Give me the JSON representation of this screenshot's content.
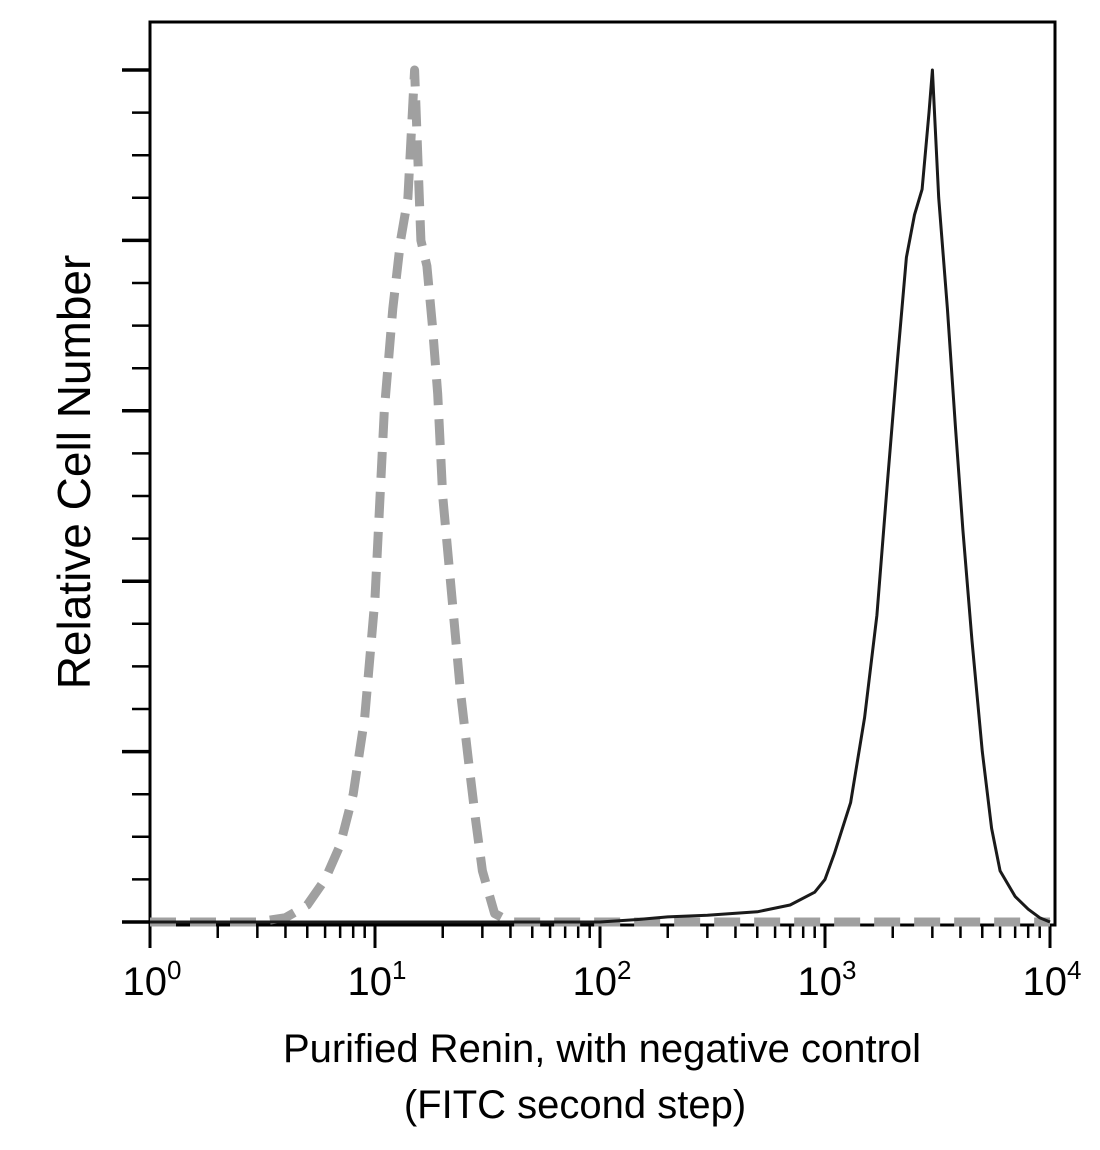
{
  "chart_data": {
    "type": "line",
    "title": "",
    "xlabel": "Purified Renin, with negative control",
    "xlabel_line2": "(FITC second step)",
    "ylabel": "Relative Cell Number",
    "x_scale": "log",
    "xlim": [
      1,
      10000
    ],
    "ylim": [
      0,
      100
    ],
    "x_tick_labels": [
      {
        "base": "10",
        "exp": "0"
      },
      {
        "base": "10",
        "exp": "1"
      },
      {
        "base": "10",
        "exp": "2"
      },
      {
        "base": "10",
        "exp": "3"
      },
      {
        "base": "10",
        "exp": "4"
      }
    ],
    "grid": false,
    "legend": "none",
    "series": [
      {
        "style": "dashed",
        "color": "#a0a0a0",
        "x": [
          1,
          3,
          4,
          5,
          6,
          7,
          8,
          9,
          10,
          11,
          12,
          13,
          14,
          15,
          16,
          17,
          18,
          19,
          20,
          22,
          24,
          26,
          28,
          30,
          34,
          40,
          60,
          100,
          200,
          1000,
          10000
        ],
        "y": [
          0,
          0,
          0.5,
          2,
          5,
          9,
          15,
          24,
          38,
          60,
          72,
          80,
          85,
          100,
          80,
          77,
          70,
          62,
          50,
          38,
          27,
          19,
          12,
          6,
          1,
          0,
          0,
          0,
          0,
          0,
          0
        ]
      },
      {
        "style": "solid",
        "color": "#1a1a1a",
        "x": [
          1,
          100,
          150,
          200,
          300,
          500,
          700,
          900,
          1000,
          1100,
          1300,
          1500,
          1700,
          1900,
          2100,
          2300,
          2500,
          2700,
          2900,
          3000,
          3200,
          3500,
          3800,
          4100,
          4500,
          5000,
          5500,
          6000,
          7000,
          8000,
          9000,
          10000
        ],
        "y": [
          0,
          0,
          0.3,
          0.6,
          0.8,
          1.2,
          2,
          3.5,
          5,
          8,
          14,
          24,
          36,
          52,
          66,
          78,
          83,
          86,
          95,
          100,
          85,
          72,
          58,
          46,
          33,
          20,
          11,
          6,
          3,
          1.5,
          0.5,
          0
        ]
      }
    ]
  }
}
